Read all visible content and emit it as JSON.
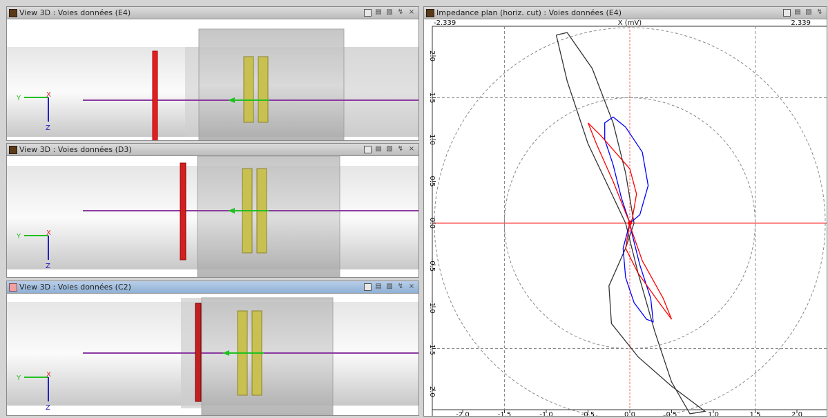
{
  "panels": [
    {
      "title": "View 3D  : Voies données (E4)",
      "active": false
    },
    {
      "title": "View 3D  : Voies données (D3)",
      "active": false
    },
    {
      "title": "View 3D  : Voies données (C2)",
      "active": true
    }
  ],
  "axes_gizmo": {
    "y_label": "Y",
    "x_label": "X",
    "z_label": "Z"
  },
  "impedance": {
    "title": "Impedance plan (horiz. cut)  : Voies données (E4)",
    "x_axis_label": "X (mV)",
    "x_min_label": "-2.339",
    "x_max_label": "2.339"
  },
  "colors": {
    "active_title": "#8fb0d6",
    "red_trace": "#ff0000",
    "blue_trace": "#0000ff",
    "black_trace": "#333333",
    "pink_axis": "#ff6060"
  },
  "chart_data": {
    "type": "line",
    "title": "Impedance plan (horiz. cut)",
    "xlabel": "X (mV)",
    "ylabel": "",
    "xlim": [
      -2.339,
      2.339
    ],
    "ylim": [
      -2.3,
      2.3
    ],
    "x_ticks": [
      "-2.0",
      "-1.5",
      "-1.0",
      "-0.5",
      "0.0",
      "0.5",
      "1.0",
      "1.5",
      "2.0"
    ],
    "y_ticks": [
      "2.0",
      "1.5",
      "1.0",
      "0.5",
      "0.0",
      "-0.5",
      "-1.0",
      "-1.5",
      "-2.0"
    ],
    "grid": true,
    "circles": [
      1.5,
      2.339
    ],
    "series": [
      {
        "color": "#333333",
        "points": [
          [
            -0.88,
            2.25
          ],
          [
            -0.75,
            2.28
          ],
          [
            -0.45,
            1.85
          ],
          [
            -0.2,
            1.2
          ],
          [
            -0.05,
            0.6
          ],
          [
            0.05,
            0.0
          ],
          [
            -0.05,
            -0.3
          ],
          [
            -0.25,
            -0.75
          ],
          [
            -0.22,
            -1.2
          ],
          [
            0.1,
            -1.6
          ],
          [
            0.5,
            -1.95
          ],
          [
            0.9,
            -2.25
          ],
          [
            0.72,
            -2.28
          ],
          [
            0.5,
            -1.9
          ],
          [
            0.3,
            -1.3
          ],
          [
            0.1,
            -0.6
          ],
          [
            -0.05,
            0.0
          ],
          [
            -0.5,
            0.95
          ],
          [
            -0.75,
            1.7
          ],
          [
            -0.88,
            2.25
          ]
        ]
      },
      {
        "color": "#0000ff",
        "points": [
          [
            0.0,
            0.0
          ],
          [
            -0.1,
            0.3
          ],
          [
            -0.2,
            0.7
          ],
          [
            -0.3,
            1.0
          ],
          [
            -0.3,
            1.2
          ],
          [
            -0.2,
            1.27
          ],
          [
            -0.05,
            1.15
          ],
          [
            0.15,
            0.85
          ],
          [
            0.22,
            0.45
          ],
          [
            0.12,
            0.1
          ],
          [
            0.0,
            0.0
          ],
          [
            -0.08,
            -0.3
          ],
          [
            -0.05,
            -0.65
          ],
          [
            0.05,
            -0.95
          ],
          [
            0.2,
            -1.15
          ],
          [
            0.28,
            -1.18
          ],
          [
            0.25,
            -0.9
          ],
          [
            0.12,
            -0.5
          ],
          [
            0.02,
            -0.1
          ],
          [
            0.0,
            0.0
          ]
        ]
      },
      {
        "color": "#ff0000",
        "points": [
          [
            0.0,
            0.0
          ],
          [
            -0.2,
            0.5
          ],
          [
            -0.4,
            0.95
          ],
          [
            -0.5,
            1.2
          ],
          [
            -0.35,
            1.05
          ],
          [
            0.0,
            0.65
          ],
          [
            0.08,
            0.35
          ],
          [
            0.03,
            0.05
          ],
          [
            0.0,
            0.0
          ],
          [
            -0.05,
            -0.3
          ],
          [
            0.1,
            -0.6
          ],
          [
            0.35,
            -0.95
          ],
          [
            0.5,
            -1.15
          ],
          [
            0.4,
            -0.9
          ],
          [
            0.15,
            -0.45
          ],
          [
            0.02,
            -0.08
          ],
          [
            0.0,
            0.0
          ]
        ]
      }
    ]
  }
}
